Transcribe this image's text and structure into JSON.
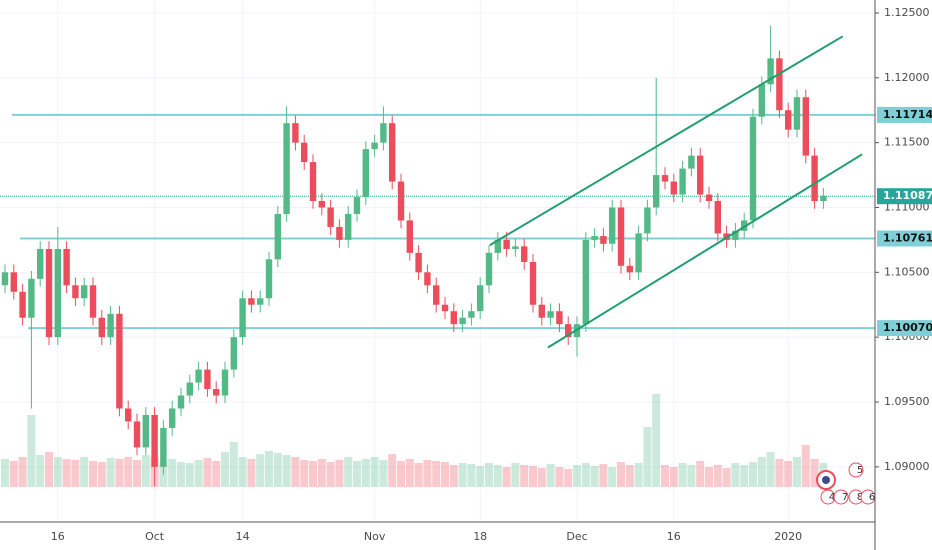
{
  "chart_data": {
    "type": "candlestick",
    "categories": [
      null,
      null,
      null,
      null,
      null,
      null,
      "16",
      null,
      null,
      null,
      null,
      null,
      null,
      null,
      null,
      null,
      null,
      "Oct",
      null,
      null,
      null,
      null,
      null,
      null,
      null,
      null,
      null,
      "14",
      null,
      null,
      null,
      null,
      null,
      null,
      null,
      null,
      null,
      null,
      null,
      null,
      null,
      null,
      "Nov",
      null,
      null,
      null,
      null,
      null,
      null,
      null,
      null,
      null,
      null,
      null,
      "18",
      null,
      null,
      null,
      null,
      null,
      null,
      null,
      null,
      null,
      null,
      "Dec",
      null,
      null,
      null,
      null,
      null,
      null,
      null,
      null,
      null,
      null,
      "16",
      null,
      null,
      null,
      null,
      null,
      null,
      null,
      null,
      null,
      null,
      null,
      null,
      "2020",
      null,
      null,
      null,
      null
    ],
    "open": [
      1.104,
      1.105,
      1.1035,
      1.1015,
      1.1045,
      1.1068,
      1.1,
      1.1068,
      1.104,
      1.103,
      1.104,
      1.1015,
      1.1,
      1.1018,
      1.0945,
      1.0935,
      1.0915,
      1.094,
      1.09,
      1.093,
      1.0945,
      1.0955,
      1.0965,
      1.0975,
      1.096,
      1.0955,
      1.0975,
      1.1,
      1.103,
      1.1025,
      1.103,
      1.106,
      1.1095,
      1.1165,
      1.115,
      1.1135,
      1.1105,
      1.11,
      1.1085,
      1.1075,
      1.1095,
      1.1108,
      1.1145,
      1.115,
      1.1165,
      1.112,
      1.109,
      1.1065,
      1.105,
      1.104,
      1.1025,
      1.102,
      1.101,
      1.1015,
      1.102,
      1.104,
      1.1065,
      1.1075,
      1.1068,
      1.107,
      1.1058,
      1.1025,
      1.1015,
      1.102,
      1.101,
      1.1,
      1.101,
      1.1075,
      1.1078,
      1.1072,
      1.11,
      1.1055,
      1.105,
      1.108,
      1.11,
      1.1125,
      1.112,
      1.111,
      1.113,
      1.114,
      1.111,
      1.1105,
      1.108,
      1.1075,
      1.1082,
      1.109,
      1.117,
      1.1195,
      1.1215,
      1.1175,
      1.116,
      1.1185,
      1.114,
      1.1105
    ],
    "high": [
      1.1056,
      1.1056,
      1.1041,
      1.1051,
      1.1074,
      1.1074,
      1.1085,
      1.1074,
      1.1046,
      1.1046,
      1.1046,
      1.1021,
      1.1024,
      1.1024,
      1.0951,
      1.0941,
      1.0946,
      1.0946,
      1.0936,
      1.0951,
      1.0961,
      1.0971,
      1.0981,
      1.0981,
      1.0966,
      1.0981,
      1.1006,
      1.1036,
      1.1036,
      1.1036,
      1.1066,
      1.1101,
      1.1178,
      1.1171,
      1.1156,
      1.1141,
      1.1111,
      1.1106,
      1.1091,
      1.1101,
      1.1114,
      1.1151,
      1.1156,
      1.1178,
      1.1171,
      1.1126,
      1.1096,
      1.1071,
      1.1056,
      1.1046,
      1.1031,
      1.1026,
      1.1021,
      1.1026,
      1.1046,
      1.1071,
      1.1081,
      1.1081,
      1.1076,
      1.1076,
      1.1064,
      1.1031,
      1.1026,
      1.1026,
      1.1016,
      1.1016,
      1.1081,
      1.1084,
      1.1084,
      1.1106,
      1.1106,
      1.1061,
      1.1086,
      1.1106,
      1.12,
      1.1131,
      1.1126,
      1.1136,
      1.1146,
      1.1146,
      1.1116,
      1.1111,
      1.1086,
      1.1088,
      1.1096,
      1.1176,
      1.1201,
      1.124,
      1.1221,
      1.1181,
      1.1191,
      1.1191,
      1.1146,
      1.1115
    ],
    "low": [
      1.1034,
      1.1029,
      1.1009,
      1.0945,
      1.1039,
      1.0994,
      1.0994,
      1.1034,
      1.1024,
      1.1024,
      1.1009,
      1.0994,
      1.0994,
      1.0939,
      1.0929,
      1.0909,
      1.0909,
      1.0885,
      1.0894,
      1.0924,
      1.0939,
      1.0949,
      1.0959,
      1.0954,
      1.0949,
      1.0949,
      1.0969,
      1.0994,
      1.1019,
      1.1019,
      1.1024,
      1.1054,
      1.1089,
      1.1144,
      1.1129,
      1.1099,
      1.1094,
      1.1079,
      1.1069,
      1.1069,
      1.1089,
      1.1102,
      1.1139,
      1.1144,
      1.1114,
      1.1084,
      1.1059,
      1.1044,
      1.1034,
      1.1019,
      1.1014,
      1.1004,
      1.1004,
      1.1009,
      1.1014,
      1.1034,
      1.1059,
      1.1062,
      1.1062,
      1.1052,
      1.1019,
      1.1009,
      1.1009,
      1.1004,
      1.0994,
      1.0985,
      1.1004,
      1.1069,
      1.1066,
      1.1066,
      1.1049,
      1.1044,
      1.1044,
      1.1074,
      1.1094,
      1.1114,
      1.1104,
      1.1104,
      1.1124,
      1.1104,
      1.1099,
      1.1074,
      1.1069,
      1.1069,
      1.1076,
      1.1084,
      1.1164,
      1.1189,
      1.1169,
      1.1154,
      1.1154,
      1.1134,
      1.1099,
      1.1099
    ],
    "close": [
      1.105,
      1.1035,
      1.1015,
      1.1045,
      1.1068,
      1.1,
      1.1068,
      1.104,
      1.103,
      1.104,
      1.1015,
      1.1,
      1.1018,
      1.0945,
      1.0935,
      1.0915,
      1.094,
      1.09,
      1.093,
      1.0945,
      1.0955,
      1.0965,
      1.0975,
      1.096,
      1.0955,
      1.0975,
      1.1,
      1.103,
      1.1025,
      1.103,
      1.106,
      1.1095,
      1.1165,
      1.115,
      1.1135,
      1.1105,
      1.11,
      1.1085,
      1.1075,
      1.1095,
      1.1108,
      1.1145,
      1.115,
      1.1165,
      1.112,
      1.109,
      1.1065,
      1.105,
      1.104,
      1.1025,
      1.102,
      1.101,
      1.1015,
      1.102,
      1.104,
      1.1065,
      1.1075,
      1.1068,
      1.107,
      1.1058,
      1.1025,
      1.1015,
      1.102,
      1.101,
      1.1,
      1.101,
      1.1075,
      1.1078,
      1.1072,
      1.11,
      1.1055,
      1.105,
      1.108,
      1.11,
      1.1125,
      1.112,
      1.111,
      1.113,
      1.114,
      1.111,
      1.1105,
      1.108,
      1.1075,
      1.1082,
      1.109,
      1.117,
      1.1195,
      1.1215,
      1.1175,
      1.116,
      1.1185,
      1.114,
      1.1105,
      1.1109
    ],
    "volume": [
      28,
      26,
      30,
      72,
      32,
      35,
      30,
      28,
      27,
      30,
      26,
      25,
      29,
      28,
      30,
      27,
      32,
      30,
      26,
      28,
      25,
      24,
      27,
      29,
      26,
      35,
      45,
      30,
      28,
      33,
      36,
      34,
      32,
      30,
      27,
      26,
      28,
      25,
      27,
      30,
      26,
      28,
      30,
      27,
      33,
      26,
      28,
      24,
      27,
      26,
      25,
      22,
      24,
      23,
      21,
      24,
      22,
      20,
      24,
      22,
      21,
      19,
      23,
      20,
      18,
      22,
      24,
      21,
      23,
      20,
      25,
      22,
      24,
      60,
      93,
      22,
      20,
      24,
      22,
      26,
      20,
      22,
      19,
      24,
      22,
      25,
      30,
      35,
      28,
      26,
      30,
      42,
      28,
      24
    ],
    "up_color": "#53b987",
    "down_color": "#eb4d5c",
    "ylim": [
      1.0859,
      1.126
    ],
    "yticks": [
      {
        "value": 1.09,
        "label": "1.09000"
      },
      {
        "value": 1.095,
        "label": "1.09500"
      },
      {
        "value": 1.1,
        "label": "1.10000"
      },
      {
        "value": 1.105,
        "label": "1.10500"
      },
      {
        "value": 1.11,
        "label": "1.11000"
      },
      {
        "value": 1.115,
        "label": "1.11500"
      },
      {
        "value": 1.12,
        "label": "1.12000"
      },
      {
        "value": 1.125,
        "label": "1.12500"
      }
    ],
    "levels": [
      1.11714,
      1.10761,
      {
        "value": 1.1007,
        "label": "1.10070"
      }
    ],
    "level_color": "#7fd0d6",
    "last_price": 1.11087,
    "last_price_color": "#26a69a",
    "trend_lines": [
      {
        "x": [
          55.1,
          95.2
        ],
        "y": [
          1.1071,
          1.1232
        ]
      },
      {
        "x": [
          61.7,
          97.4
        ],
        "y": [
          1.0992,
          1.1141
        ]
      }
    ],
    "trend_color": "#1e9e6e",
    "event_badges": [
      "5",
      "4",
      "7",
      "8",
      "6"
    ],
    "grid": true
  }
}
